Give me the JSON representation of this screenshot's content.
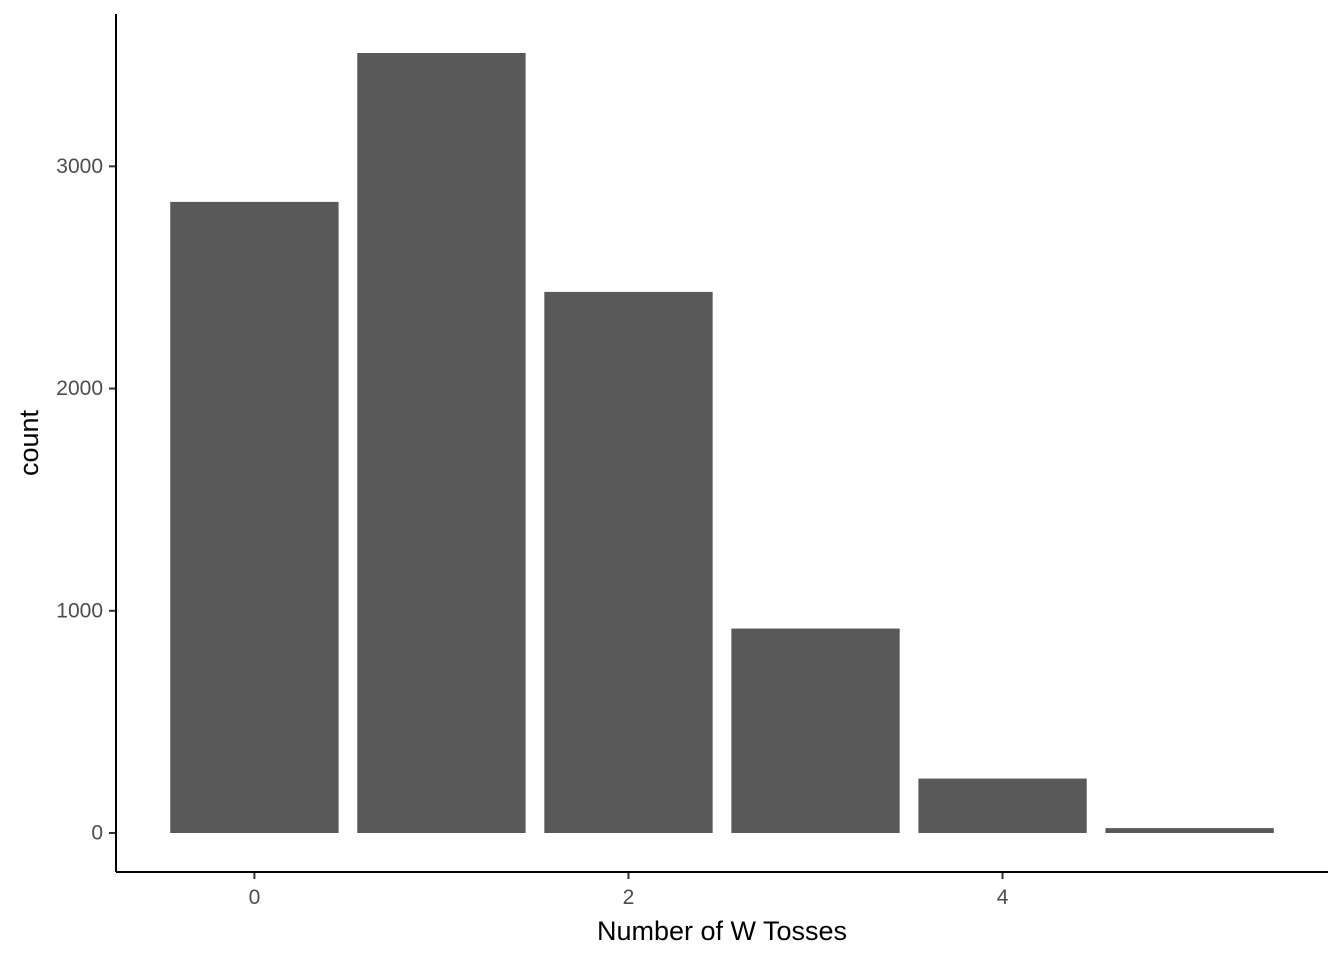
{
  "chart_data": {
    "type": "bar",
    "title": "",
    "xlabel": "Number of W Tosses",
    "ylabel": "count",
    "x": [
      0,
      1,
      2,
      3,
      4,
      5
    ],
    "values": [
      2840,
      3510,
      2435,
      920,
      245,
      22
    ],
    "xticks": [
      "0",
      "2",
      "4"
    ],
    "xtick_values": [
      0,
      2,
      4
    ],
    "yticks": [
      "0",
      "1000",
      "2000",
      "3000"
    ],
    "ytick_values": [
      0,
      1000,
      2000,
      3000
    ],
    "xlim": [
      -0.74,
      5.74
    ],
    "ylim": [
      -175.5,
      3685.5
    ],
    "grid": false,
    "legend": "none",
    "bar_color": "#595959"
  }
}
